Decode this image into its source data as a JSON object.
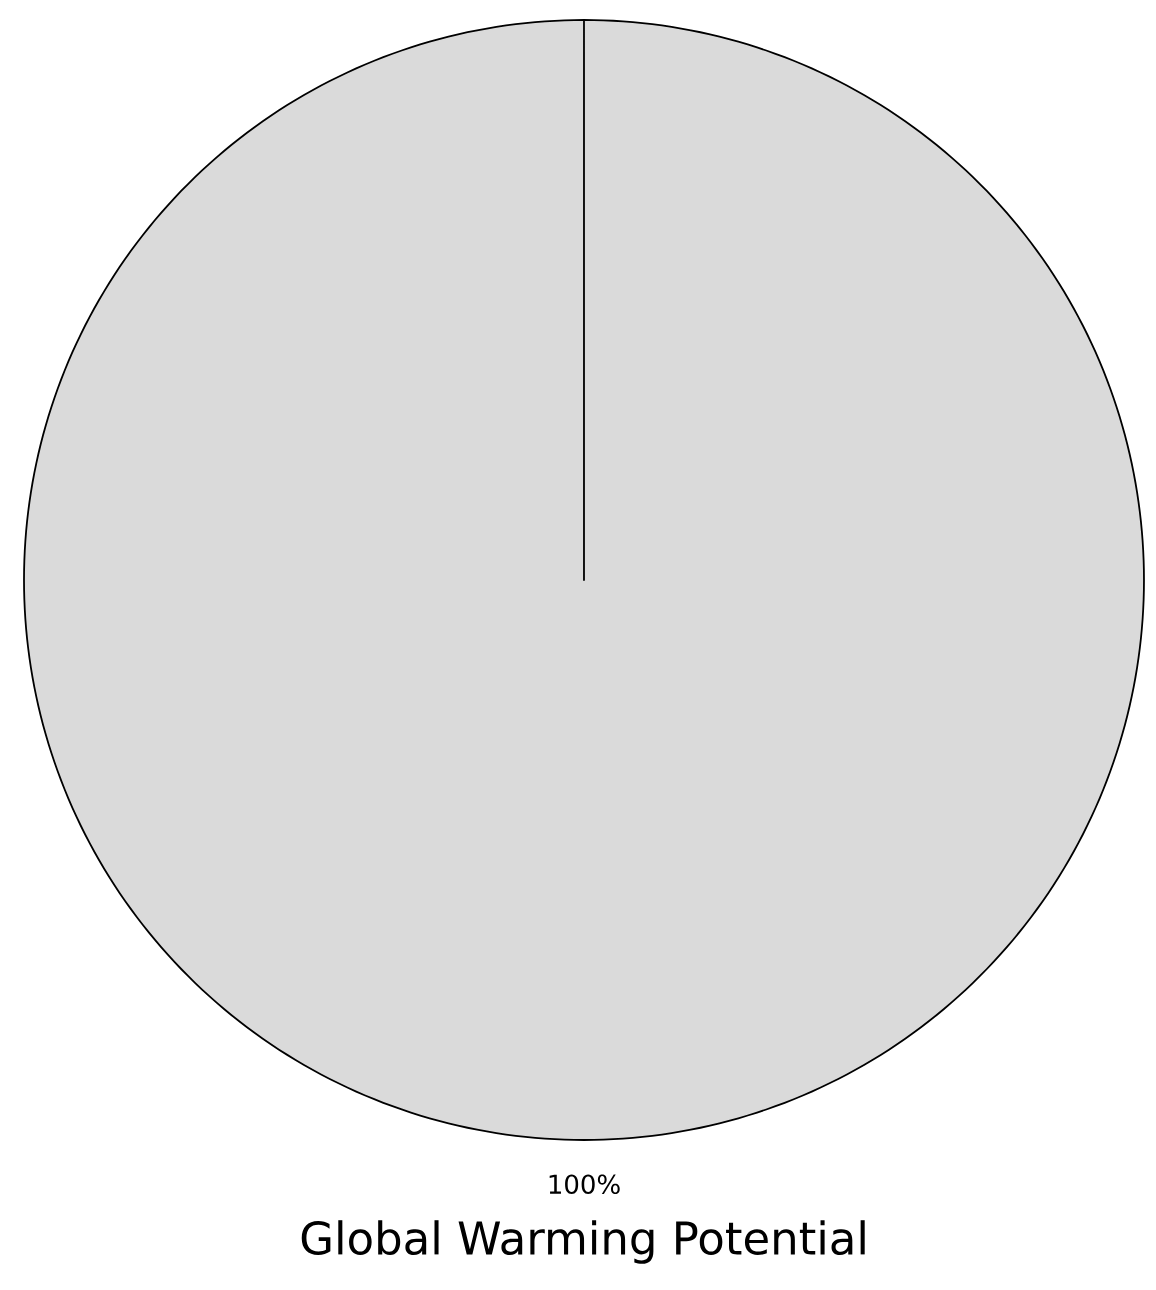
{
  "chart_data": {
    "type": "pie",
    "title": "Global Warming Potential",
    "categories": [
      null
    ],
    "values": [
      100
    ],
    "colors": [
      "#dadada"
    ],
    "value_labels": [
      "100%"
    ]
  }
}
